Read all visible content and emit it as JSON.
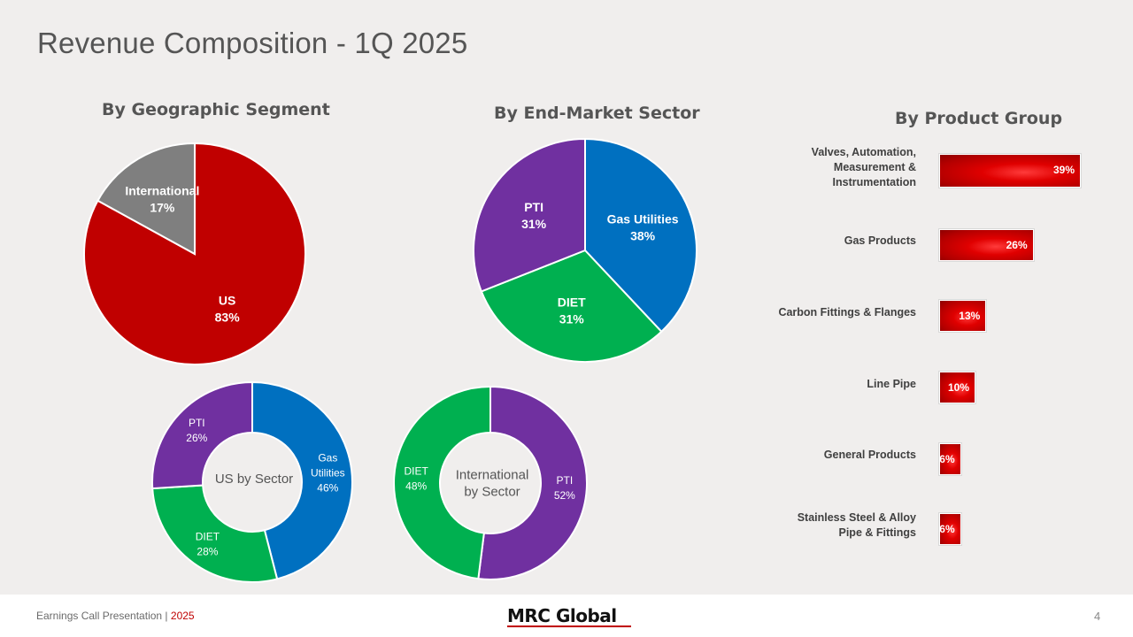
{
  "slide": {
    "title": "Revenue Composition - 1Q 2025"
  },
  "colors": {
    "red": "#c00000",
    "gray": "#7f7f7f",
    "blue": "#0070c0",
    "green": "#00b050",
    "purple": "#7030a0",
    "bar_red": "#e00000"
  },
  "chart_data": [
    {
      "type": "pie",
      "title": "By Geographic Segment",
      "slices": [
        {
          "label": "US",
          "value": 83,
          "text": "83%",
          "color": "#c00000"
        },
        {
          "label": "International",
          "value": 17,
          "text": "17%",
          "color": "#7f7f7f"
        }
      ]
    },
    {
      "type": "pie",
      "title": "By End-Market Sector",
      "slices": [
        {
          "label": "Gas Utilities",
          "value": 38,
          "text": "38%",
          "color": "#0070c0"
        },
        {
          "label": "DIET",
          "value": 31,
          "text": "31%",
          "color": "#00b050"
        },
        {
          "label": "PTI",
          "value": 31,
          "text": "31%",
          "color": "#7030a0"
        }
      ]
    },
    {
      "type": "pie",
      "title": "US by Sector",
      "donut": true,
      "slices": [
        {
          "label": "Gas Utilities",
          "value": 46,
          "text": "46%",
          "color": "#0070c0"
        },
        {
          "label": "DIET",
          "value": 28,
          "text": "28%",
          "color": "#00b050"
        },
        {
          "label": "PTI",
          "value": 26,
          "text": "26%",
          "color": "#7030a0"
        }
      ]
    },
    {
      "type": "pie",
      "title": "International by Sector",
      "donut": true,
      "slices": [
        {
          "label": "PTI",
          "value": 52,
          "text": "52%",
          "color": "#7030a0"
        },
        {
          "label": "DIET",
          "value": 48,
          "text": "48%",
          "color": "#00b050"
        }
      ]
    },
    {
      "type": "bar",
      "orientation": "horizontal",
      "title": "By Product Group",
      "categories": [
        "Valves, Automation, Measurement & Instrumentation",
        "Gas Products",
        "Carbon Fittings & Flanges",
        "Line Pipe",
        "General Products",
        "Stainless Steel & Alloy Pipe & Fittings"
      ],
      "values": [
        39,
        26,
        13,
        10,
        6,
        6
      ],
      "value_labels": [
        "39%",
        "26%",
        "13%",
        "10%",
        "6%",
        "6%"
      ]
    }
  ],
  "footer": {
    "presentation": "Earnings Call Presentation",
    "separator": "|",
    "year": "2025",
    "logo": "MRC Global",
    "page_number": "4"
  }
}
